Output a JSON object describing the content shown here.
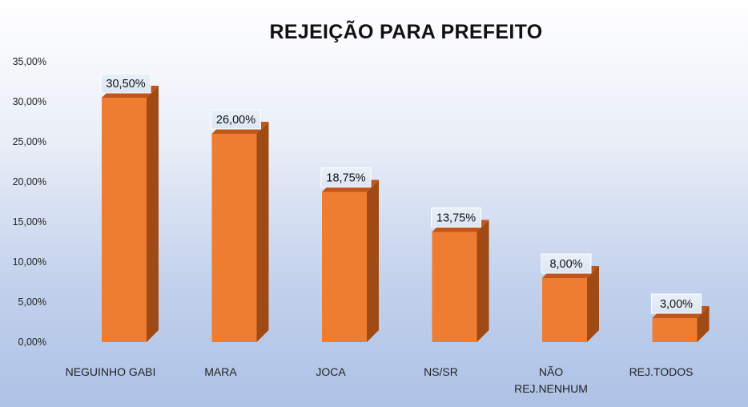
{
  "chart_data": {
    "type": "bar",
    "title": "REJEIÇÃO PARA PREFEITO",
    "categories": [
      [
        "NEGUINHO GABI"
      ],
      [
        "MARA"
      ],
      [
        "JOCA"
      ],
      [
        "NS/SR"
      ],
      [
        "NÃO",
        "REJ.NENHUM"
      ],
      [
        "REJ.TODOS"
      ]
    ],
    "values": [
      30.5,
      26.0,
      18.75,
      13.75,
      8.0,
      3.0
    ],
    "data_labels": [
      "30,50%",
      "26,00%",
      "18,75%",
      "13,75%",
      "8,00%",
      "3,00%"
    ],
    "y_ticks": [
      "0,00%",
      "5,00%",
      "10,00%",
      "15,00%",
      "20,00%",
      "25,00%",
      "30,00%",
      "35,00%"
    ],
    "ylim": [
      0,
      35
    ],
    "xlabel": "",
    "ylabel": "",
    "legend": false,
    "grid": false,
    "bar_style": "3d",
    "colors": {
      "front": "#ee7d31",
      "top": "#c0561b",
      "side": "#a04a16",
      "label_bg": "#dce6f2"
    }
  }
}
